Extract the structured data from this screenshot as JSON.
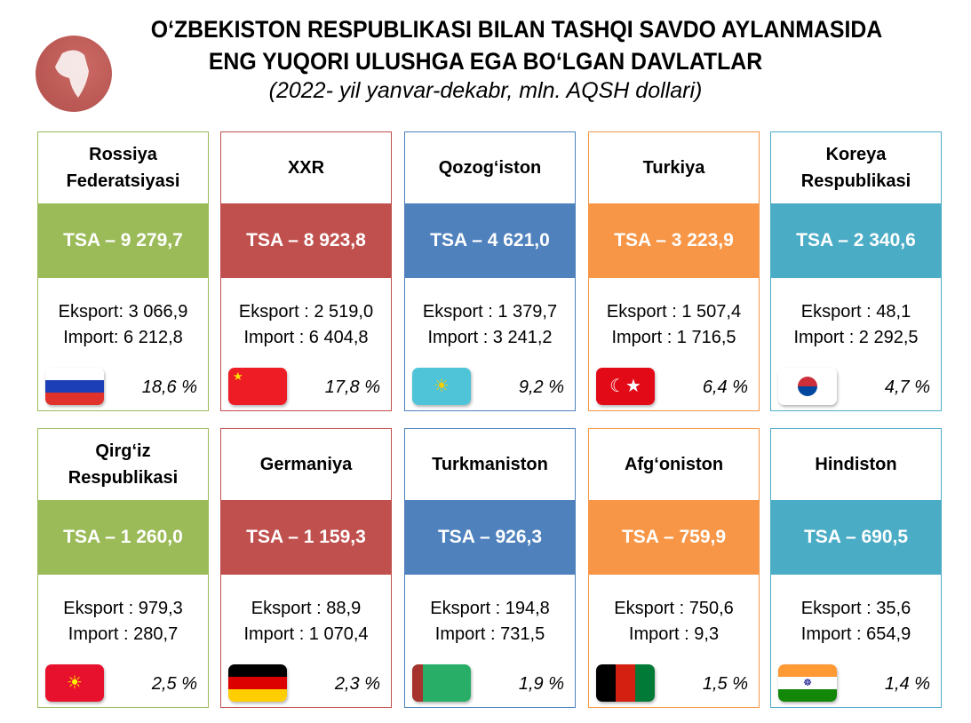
{
  "title": {
    "line1": "O‘ZBEKISTON RESPUBLIKASI BILAN TASHQI SAVDO AYLANMASIDA",
    "line2": "ENG YUQORI ULUSHGA EGA BO‘LGAN DAVLATLAR",
    "subtitle": "(2022- yil yanvar-dekabr, mln. AQSH dollari)"
  },
  "colors": {
    "green": "#9bbb59",
    "red": "#c0504d",
    "blue": "#4f81bd",
    "orange": "#f79646",
    "teal": "#4bacc6"
  },
  "countries": [
    {
      "name": "Rossiya Federatsiyasi",
      "tsa": "TSA – 9 279,7",
      "eksport": "Eksport: 3 066,9",
      "import": "Import: 6 212,8",
      "share": "18,6 %",
      "flag": "russia-flag",
      "color": "#9bbb59"
    },
    {
      "name": "XXR",
      "tsa": "TSA – 8 923,8",
      "eksport": "Eksport : 2 519,0",
      "import": "Import : 6 404,8",
      "share": "17,8 %",
      "flag": "china-flag",
      "color": "#c0504d"
    },
    {
      "name": "Qozog‘iston",
      "tsa": "TSA – 4 621,0",
      "eksport": "Eksport : 1 379,7",
      "import": "Import : 3 241,2",
      "share": "9,2 %",
      "flag": "kazakhstan-flag",
      "color": "#4f81bd"
    },
    {
      "name": "Turkiya",
      "tsa": "TSA – 3 223,9",
      "eksport": "Eksport : 1 507,4",
      "import": "Import : 1 716,5",
      "share": "6,4 %",
      "flag": "turkey-flag",
      "color": "#f79646"
    },
    {
      "name": "Koreya Respublikasi",
      "tsa": "TSA – 2 340,6",
      "eksport": "Eksport : 48,1",
      "import": "Import : 2 292,5",
      "share": "4,7 %",
      "flag": "korea-flag",
      "color": "#4bacc6"
    },
    {
      "name": "Qirg‘iz Respublikasi",
      "tsa": "TSA – 1 260,0",
      "eksport": "Eksport : 979,3",
      "import": "Import : 280,7",
      "share": "2,5 %",
      "flag": "kyrgyzstan-flag",
      "color": "#9bbb59"
    },
    {
      "name": "Germaniya",
      "tsa": "TSA – 1 159,3",
      "eksport": "Eksport : 88,9",
      "import": "Import : 1 070,4",
      "share": "2,3 %",
      "flag": "germany-flag",
      "color": "#c0504d"
    },
    {
      "name": "Turkmaniston",
      "tsa": "TSA – 926,3",
      "eksport": "Eksport : 194,8",
      "import": "Import : 731,5",
      "share": "1,9 %",
      "flag": "turkmenistan-flag",
      "color": "#4f81bd"
    },
    {
      "name": "Afg‘oniston",
      "tsa": "TSA – 759,9",
      "eksport": "Eksport : 750,6",
      "import": "Import : 9,3",
      "share": "1,5 %",
      "flag": "afghanistan-flag",
      "color": "#f79646"
    },
    {
      "name": "Hindiston",
      "tsa": "TSA – 690,5",
      "eksport": "Eksport : 35,6",
      "import": "Import : 654,9",
      "share": "1,4 %",
      "flag": "india-flag",
      "color": "#4bacc6"
    }
  ]
}
